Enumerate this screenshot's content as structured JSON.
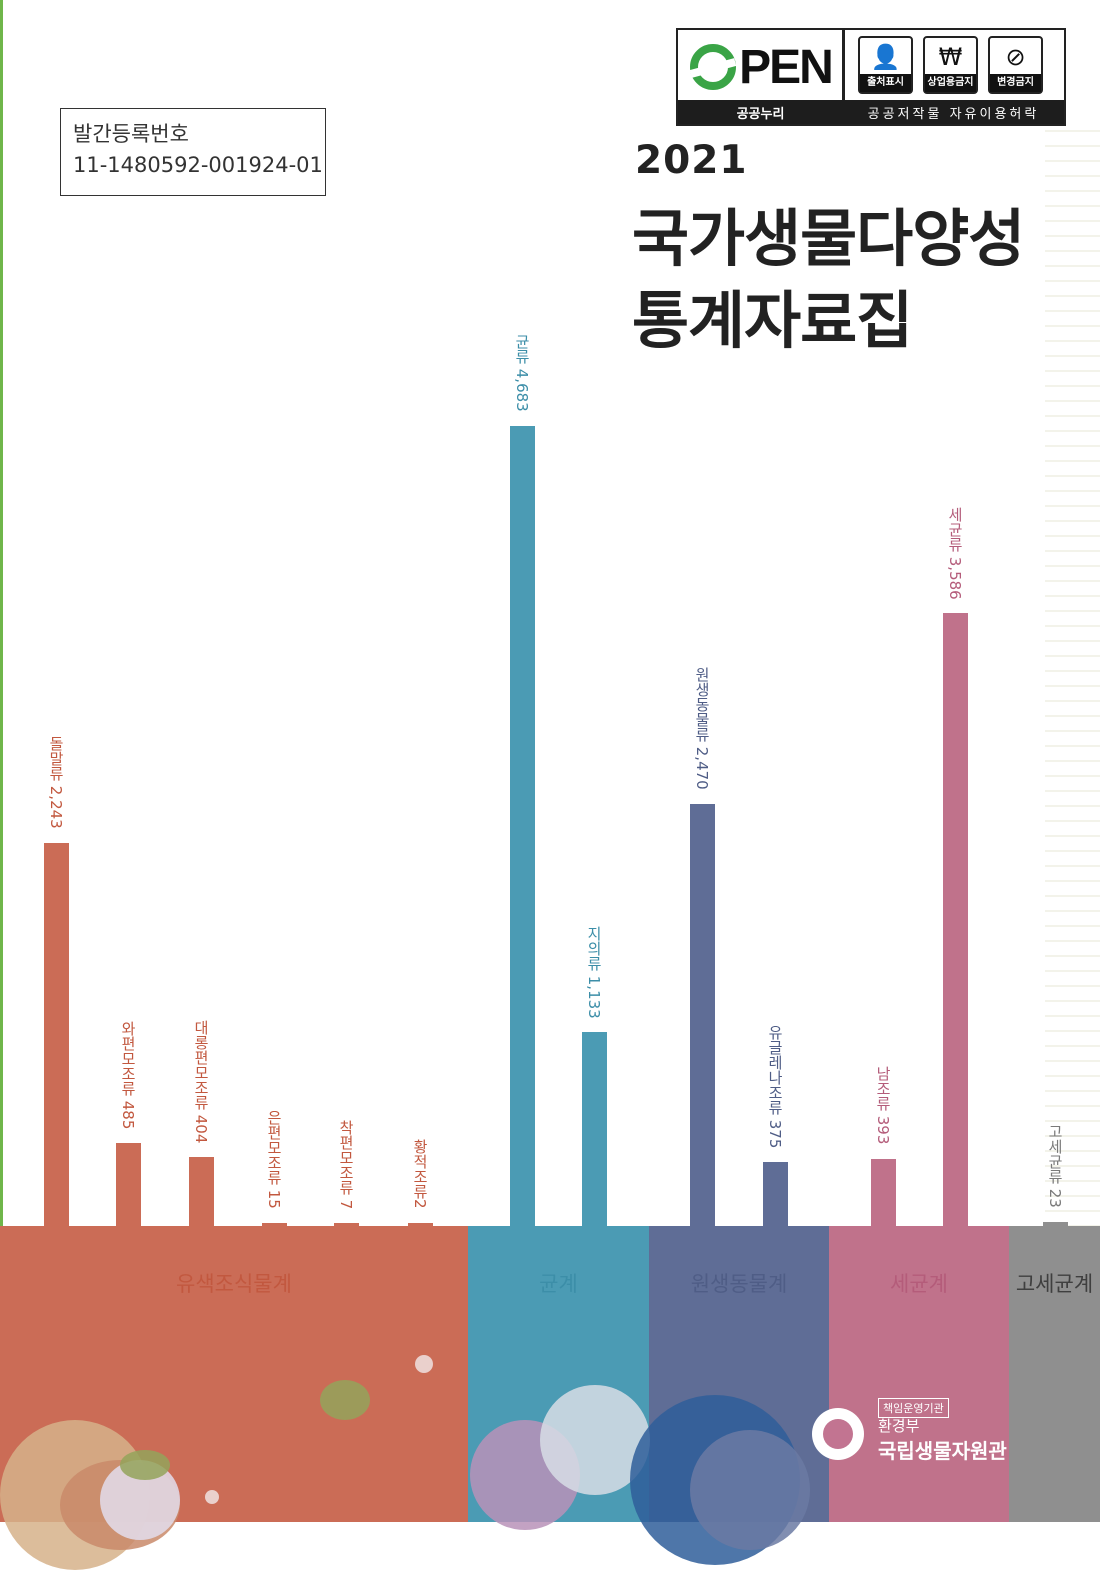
{
  "registration": {
    "label": "발간등록번호",
    "number": "11-1480592-001924-01"
  },
  "license": {
    "logo_text": "PEN",
    "icons": [
      {
        "name": "attribution-icon",
        "label": "출처표시",
        "glyph": "👤"
      },
      {
        "name": "noncommercial-icon",
        "label": "상업용금지",
        "glyph": "₩"
      },
      {
        "name": "no-derivatives-icon",
        "label": "변경금지",
        "glyph": "⊘"
      }
    ],
    "footer_left": "공공누리",
    "footer_right": "공공저작물 자유이용허락"
  },
  "cover": {
    "year": "2021",
    "title_line1": "국가생물다양성",
    "title_line2": "통계자료집"
  },
  "chart_data": {
    "type": "bar",
    "kingdoms": [
      {
        "name": "유색조식물계",
        "color": "#cb6c56",
        "categories": [
          {
            "label": "돌말류 2,243",
            "value": 2243
          },
          {
            "label": "와편모조류 485",
            "value": 485
          },
          {
            "label": "대롱편모조류 404",
            "value": 404
          },
          {
            "label": "은편모조류 15",
            "value": 15
          },
          {
            "label": "착편모조류 7",
            "value": 7
          },
          {
            "label": "황적조류2",
            "value": 2
          }
        ]
      },
      {
        "name": "균계",
        "color": "#4b9bb4",
        "categories": [
          {
            "label": "균류 4,683",
            "value": 4683
          },
          {
            "label": "지의류 1,133",
            "value": 1133
          }
        ]
      },
      {
        "name": "원생동물계",
        "color": "#5f6d96",
        "categories": [
          {
            "label": "원생동물류 2,470",
            "value": 2470
          },
          {
            "label": "유글레나조류 375",
            "value": 375
          }
        ]
      },
      {
        "name": "세균계",
        "color": "#c0728b",
        "categories": [
          {
            "label": "남조류 393",
            "value": 393
          },
          {
            "label": "세균류 3,586",
            "value": 3586
          }
        ]
      },
      {
        "name": "고세균계",
        "color": "#8f8f8f",
        "categories": [
          {
            "label": "고세균류 23",
            "value": 23
          }
        ]
      }
    ]
  },
  "agency": {
    "tag": "책임운영기관",
    "ministry": "환경부",
    "org": "국립생물자원관"
  }
}
